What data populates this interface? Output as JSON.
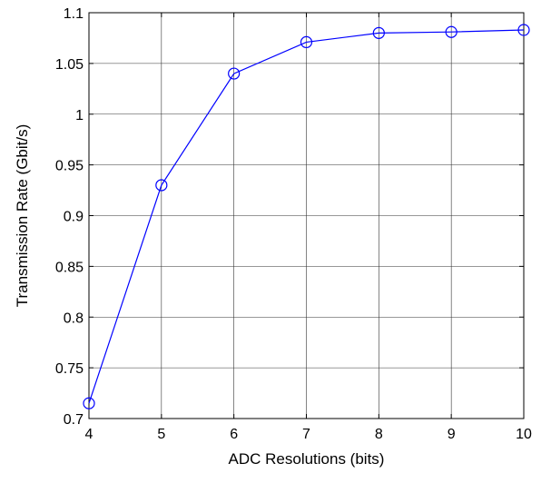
{
  "chart_data": {
    "type": "line",
    "title": "",
    "xlabel": "ADC Resolutions (bits)",
    "ylabel": "Transmission Rate (Gbit/s)",
    "xlim": [
      4,
      10
    ],
    "ylim": [
      0.7,
      1.1
    ],
    "grid": true,
    "legend": "none",
    "x_ticks": [
      4,
      5,
      6,
      7,
      8,
      9,
      10
    ],
    "x_tick_labels": [
      "4",
      "5",
      "6",
      "7",
      "8",
      "9",
      "10"
    ],
    "y_ticks": [
      0.7,
      0.75,
      0.8,
      0.85,
      0.9,
      0.95,
      1.0,
      1.05,
      1.1
    ],
    "y_tick_labels": [
      "0.7",
      "0.75",
      "0.8",
      "0.85",
      "0.9",
      "0.95",
      "1",
      "1.05",
      "1.1"
    ],
    "series": [
      {
        "x": [
          4,
          5,
          6,
          7,
          8,
          9,
          10
        ],
        "values": [
          0.715,
          0.93,
          1.04,
          1.071,
          1.08,
          1.081,
          1.083
        ],
        "color": "#0000ff",
        "marker": "circle"
      }
    ]
  }
}
